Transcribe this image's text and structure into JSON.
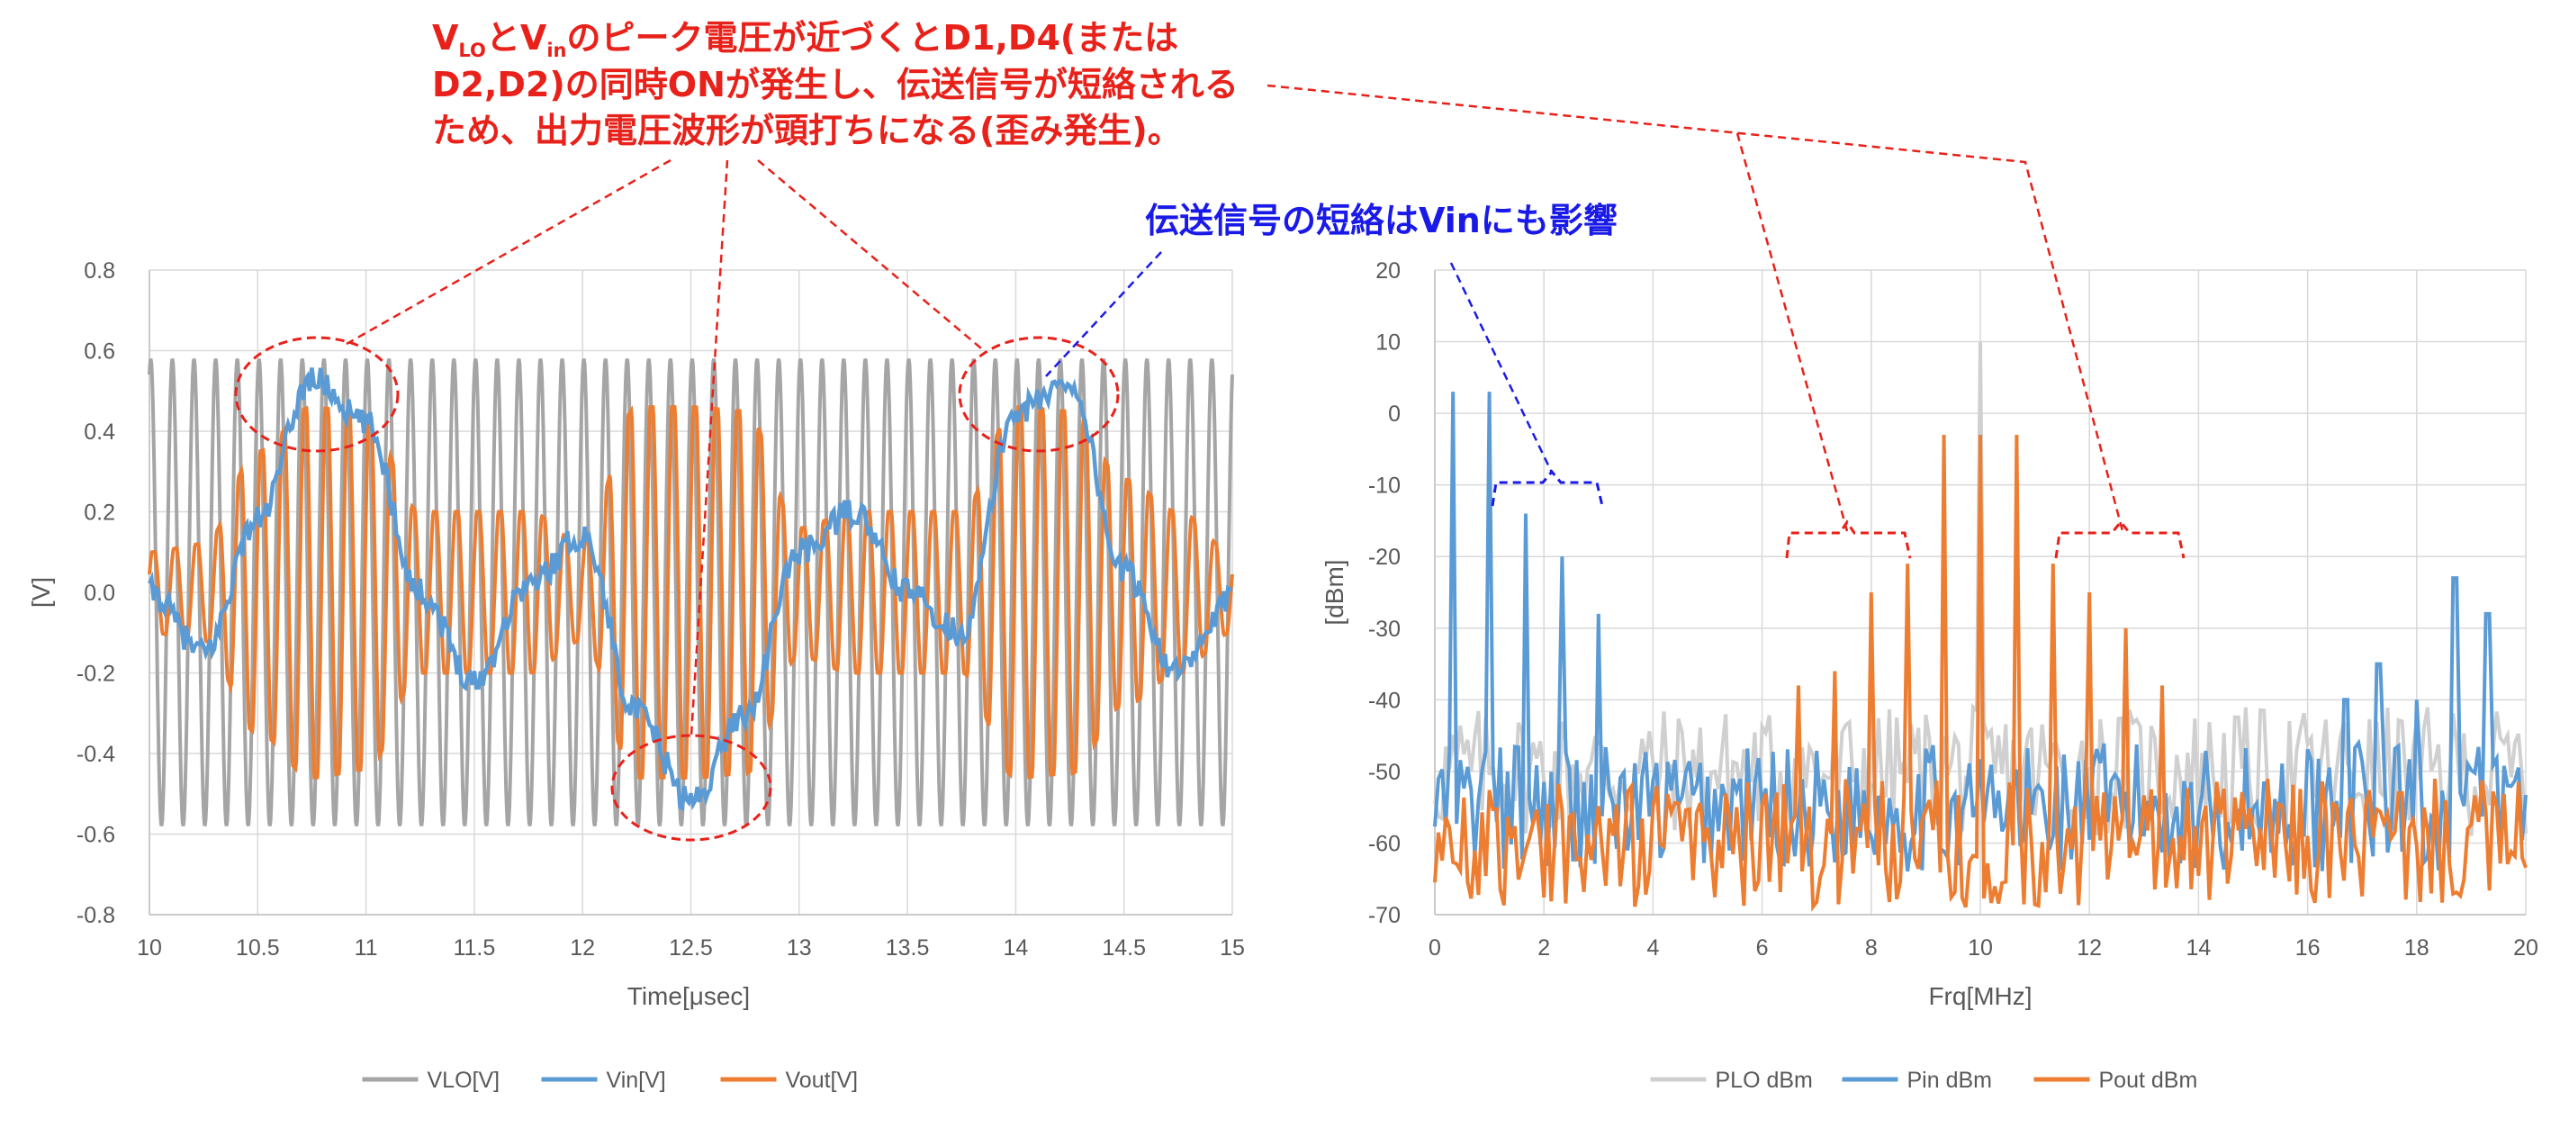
{
  "annotations": {
    "red_line1_pre": "V",
    "red_line1_sub1": "LO",
    "red_line1_mid": "とV",
    "red_line1_sub2": "in",
    "red_line1_post": "のピーク電圧が近づくとD1,D4(または",
    "red_line2": "D2,D2)の同時ONが発生し、伝送信号が短絡される",
    "red_line3": "ため、出力電圧波形が頭打ちになる(歪み発生)。",
    "blue_note": "伝送信号の短絡はVinにも影響"
  },
  "chart_data": [
    {
      "type": "line",
      "xlabel": "Time[μsec]",
      "ylabel": "[V]",
      "xlim": [
        10,
        15
      ],
      "ylim": [
        -0.8,
        0.8
      ],
      "xticks": [
        "10",
        "10.5",
        "11",
        "11.5",
        "12",
        "12.5",
        "13",
        "13.5",
        "14",
        "14.5",
        "15"
      ],
      "yticks": [
        "0.8",
        "0.6",
        "0.4",
        "0.2",
        "0.0",
        "-0.2",
        "-0.4",
        "-0.6",
        "-0.8"
      ],
      "grid": true,
      "legend_position": "bottom",
      "series": [
        {
          "name": "VLO[V]",
          "color": "#a5a5a5",
          "amplitude": 0.58,
          "freq_mhz": 10,
          "samples": 1200
        },
        {
          "name": "Vin[V]",
          "color": "#5b9bd5",
          "x": [
            10.0,
            10.25,
            10.5,
            10.75,
            11.0,
            11.25,
            11.5,
            11.75,
            12.0,
            12.25,
            12.5,
            12.75,
            13.0,
            13.25,
            13.5,
            13.75,
            14.0,
            14.25,
            14.5,
            14.75,
            15.0
          ],
          "y": [
            0.0,
            -0.15,
            0.18,
            0.53,
            0.42,
            0.0,
            -0.22,
            0.02,
            0.14,
            -0.3,
            -0.52,
            -0.3,
            0.1,
            0.2,
            0.0,
            -0.1,
            0.45,
            0.52,
            0.05,
            -0.2,
            -0.02
          ]
        },
        {
          "name": "Vout[V]",
          "color": "#ed7d31",
          "carrier_mhz": 10,
          "x": [
            10.0,
            10.25,
            10.5,
            10.75,
            11.0,
            11.25,
            11.5,
            11.75,
            12.0,
            12.25,
            12.5,
            12.75,
            13.0,
            13.25,
            13.5,
            13.75,
            14.0,
            14.25,
            14.5,
            14.75,
            15.0
          ],
          "envelope": [
            0.1,
            0.12,
            0.35,
            0.46,
            0.44,
            0.2,
            0.2,
            0.2,
            0.12,
            0.46,
            0.46,
            0.45,
            0.16,
            0.2,
            0.2,
            0.2,
            0.46,
            0.45,
            0.28,
            0.2,
            0.1
          ]
        }
      ]
    },
    {
      "type": "line",
      "xlabel": "Frq[MHz]",
      "ylabel": "[dBm]",
      "xlim": [
        0,
        20
      ],
      "ylim": [
        -70,
        20
      ],
      "xticks": [
        "0",
        "2",
        "4",
        "6",
        "8",
        "10",
        "12",
        "14",
        "16",
        "18",
        "20"
      ],
      "yticks": [
        "20",
        "10",
        "0",
        "-10",
        "-20",
        "-30",
        "-40",
        "-50",
        "-60",
        "-70"
      ],
      "grid": true,
      "legend_position": "bottom",
      "series": [
        {
          "name": "PLO dBm",
          "color": "#d0d0d0",
          "noise_floor": -50,
          "peaks": [
            [
              10.0,
              10
            ]
          ]
        },
        {
          "name": "Pin dBm",
          "color": "#5b9bd5",
          "noise_floor": -55,
          "peaks": [
            [
              0.33,
              3
            ],
            [
              1.0,
              3
            ],
            [
              1.67,
              -14
            ],
            [
              2.33,
              -20
            ],
            [
              3.0,
              -28
            ],
            [
              16.7,
              -40
            ],
            [
              17.3,
              -35
            ],
            [
              18.0,
              -40
            ],
            [
              18.7,
              -23
            ],
            [
              19.3,
              -28
            ]
          ]
        },
        {
          "name": "Pout dBm",
          "color": "#ed7d31",
          "noise_floor": -60,
          "peaks": [
            [
              6.67,
              -38
            ],
            [
              7.33,
              -36
            ],
            [
              8.0,
              -25
            ],
            [
              8.67,
              -21
            ],
            [
              9.33,
              -3
            ],
            [
              10.0,
              -3
            ],
            [
              10.67,
              -3
            ],
            [
              11.33,
              -21
            ],
            [
              12.0,
              -25
            ],
            [
              12.67,
              -30
            ],
            [
              13.33,
              -38
            ]
          ]
        }
      ]
    }
  ]
}
